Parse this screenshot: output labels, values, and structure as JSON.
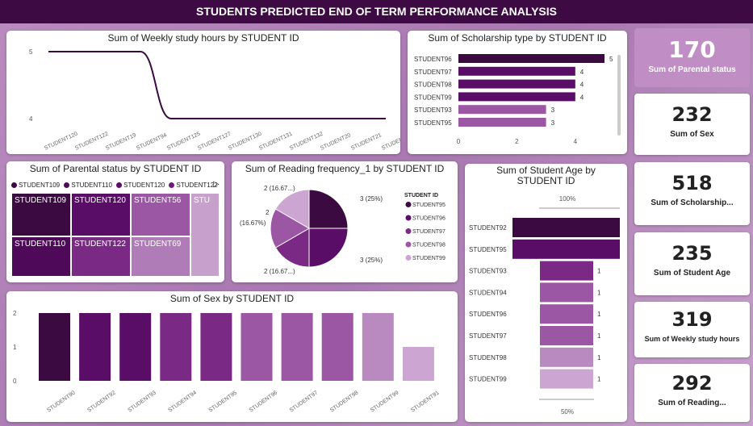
{
  "header": {
    "title": "STUDENTS PREDICTED END OF TERM PERFORMANCE ANALYSIS"
  },
  "colors": {
    "c1": "#3a0a40",
    "c2": "#5a0d66",
    "c3": "#7a2a85",
    "c4": "#9b57a4",
    "c5": "#b98ac0",
    "c6": "#cda5d2"
  },
  "kpis": [
    {
      "value": "170",
      "label": "Sum of Parental status"
    },
    {
      "value": "232",
      "label": "Sum of Sex"
    },
    {
      "value": "518",
      "label": "Sum of Scholarship..."
    },
    {
      "value": "235",
      "label": "Sum of Student Age"
    },
    {
      "value": "319",
      "label": "Sum of Weekly study hours"
    },
    {
      "value": "292",
      "label": "Sum of Reading..."
    }
  ],
  "chart_data": [
    {
      "type": "line",
      "title": "Sum of Weekly study hours by STUDENT ID",
      "categories": [
        "STUDENT120",
        "STUDENT122",
        "STUDENT19",
        "STUDENT94",
        "STUDENT125",
        "STUDENT127",
        "STUDENT130",
        "STUDENT131",
        "STUDENT132",
        "STUDENT20",
        "STUDENT21",
        "STUDENT57"
      ],
      "values": [
        5,
        5,
        5,
        5,
        4,
        4,
        4,
        4,
        4,
        4,
        4,
        4
      ],
      "yticks": [
        "5",
        "4"
      ]
    },
    {
      "type": "bar",
      "orientation": "horizontal",
      "title": "Sum of Scholarship type by STUDENT ID",
      "categories": [
        "STUDENT96",
        "STUDENT97",
        "STUDENT98",
        "STUDENT99",
        "STUDENT93",
        "STUDENT95"
      ],
      "values": [
        5,
        4,
        4,
        4,
        3,
        3
      ],
      "xticks": [
        "0",
        "2",
        "4"
      ],
      "xlim": [
        0,
        5
      ]
    },
    {
      "type": "treemap",
      "title": "Sum of Parental status by STUDENT ID",
      "legend": [
        "STUDENT109",
        "STUDENT110",
        "STUDENT120",
        "STUDENT122"
      ],
      "tiles": [
        "STUDENT109",
        "STUDENT120",
        "STUDENT56",
        "STUDENT110",
        "STUDENT122",
        "STUDENT69"
      ]
    },
    {
      "type": "pie",
      "title": "Sum of Reading frequency_1 by STUDENT ID",
      "legend_title": "STUDENT ID",
      "categories": [
        "STUDENT95",
        "STUDENT96",
        "STUDENT97",
        "STUDENT98",
        "STUDENT99"
      ],
      "values": [
        3,
        3,
        2,
        2,
        2
      ],
      "labels": [
        "3 (25%)",
        "3 (25%)",
        "2 (16.67...)",
        "2 (16.67%)",
        "2 (16.67...)"
      ]
    },
    {
      "type": "bar",
      "orientation": "horizontal",
      "title": "Sum of Student Age by STUDENT ID",
      "categories": [
        "STUDENT92",
        "STUDENT95",
        "STUDENT93",
        "STUDENT94",
        "STUDENT96",
        "STUDENT97",
        "STUDENT98",
        "STUDENT99"
      ],
      "values": [
        1,
        1,
        1,
        1,
        1,
        1,
        1,
        1
      ],
      "top_label": "100%",
      "bottom_label": "50%",
      "value_label": "1"
    },
    {
      "type": "bar",
      "title": "Sum of Sex by STUDENT ID",
      "categories": [
        "STUDENT90",
        "STUDENT92",
        "STUDENT93",
        "STUDENT94",
        "STUDENT95",
        "STUDENT96",
        "STUDENT97",
        "STUDENT98",
        "STUDENT99",
        "STUDENT91"
      ],
      "values": [
        2,
        2,
        2,
        2,
        2,
        2,
        2,
        2,
        2,
        1
      ],
      "yticks": [
        "2",
        "1",
        "0"
      ],
      "ylim": [
        0,
        2
      ]
    }
  ]
}
